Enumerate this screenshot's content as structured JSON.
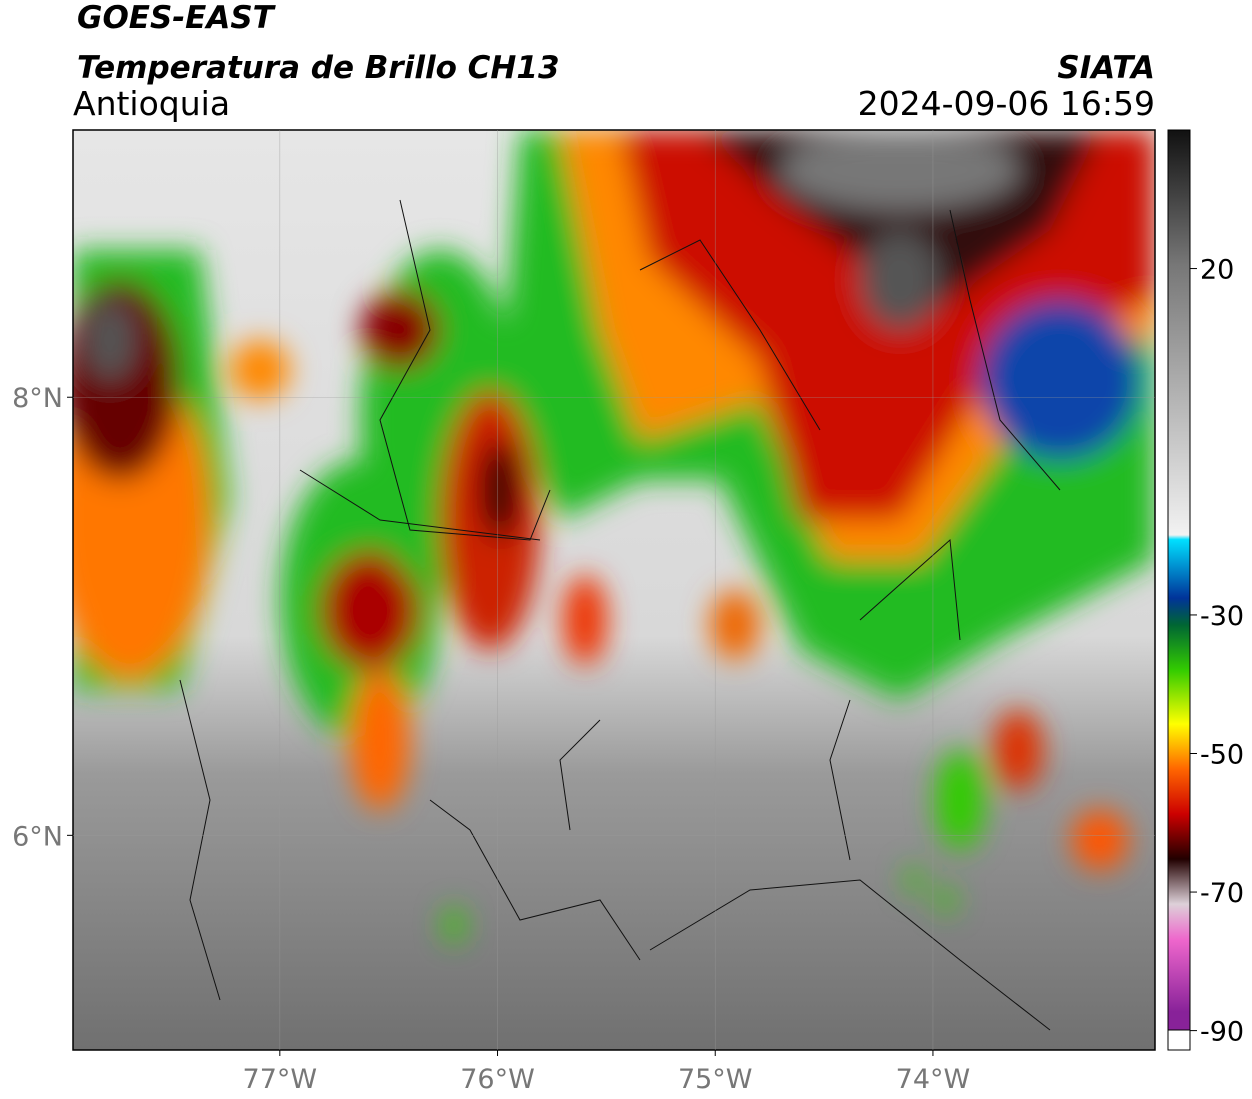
{
  "header": {
    "satellite": "GOES-EAST",
    "product": "Temperatura de Brillo CH13",
    "region": "Antioquia",
    "source": "SIATA",
    "datetime": "2024-09-06 16:59"
  },
  "map": {
    "xlim": [
      -77.95,
      -72.98
    ],
    "ylim": [
      5.02,
      9.22
    ],
    "xticks": [
      {
        "value": -77,
        "label": "77°W"
      },
      {
        "value": -76,
        "label": "76°W"
      },
      {
        "value": -75,
        "label": "75°W"
      },
      {
        "value": -74,
        "label": "74°W"
      }
    ],
    "yticks": [
      {
        "value": 8,
        "label": "8°N"
      },
      {
        "value": 6,
        "label": "6°N"
      }
    ]
  },
  "colorbar": {
    "lim": [
      40,
      -91.5
    ],
    "ticks": [
      20,
      -30,
      -50,
      -70,
      -90
    ]
  }
}
